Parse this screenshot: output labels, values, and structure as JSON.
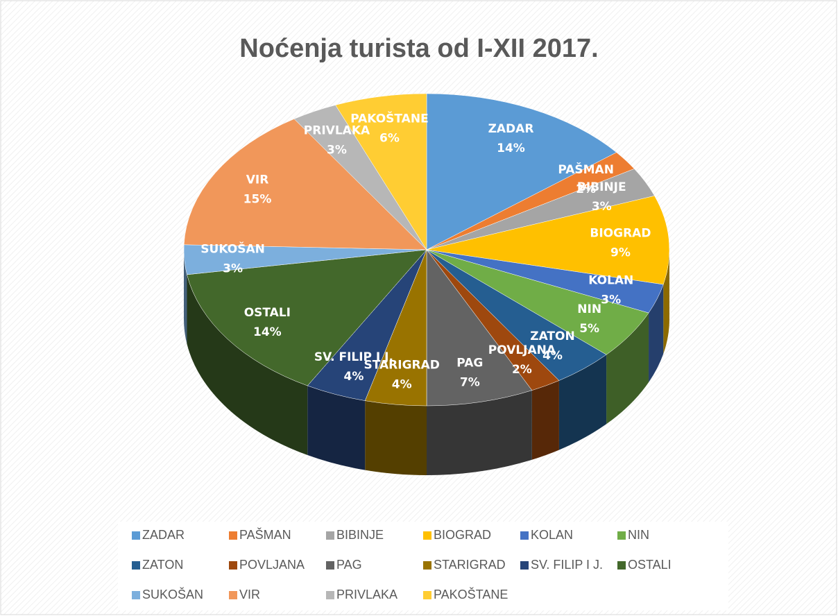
{
  "chart_data": {
    "type": "pie",
    "title": "Noćenja turista od I-XII 2017.",
    "categories": [
      "ZADAR",
      "PAŠMAN",
      "BIBINJE",
      "BIOGRAD",
      "KOLAN",
      "NIN",
      "ZATON",
      "POVLJANA",
      "PAG",
      "STARIGRAD",
      "SV. FILIP I J.",
      "OSTALI",
      "SUKOŠAN",
      "VIR",
      "PRIVLAKA",
      "PAKOŠTANE"
    ],
    "values": [
      14,
      2,
      3,
      9,
      3,
      5,
      4,
      2,
      7,
      4,
      4,
      14,
      3,
      15,
      3,
      6
    ],
    "value_labels": [
      "14%",
      "2%",
      "3%",
      "9%",
      "3%",
      "5%",
      "4%",
      "2%",
      "7%",
      "4%",
      "4%",
      "14%",
      "3%",
      "15%",
      "3%",
      "6%"
    ],
    "colors": [
      "#5b9bd5",
      "#ed7d31",
      "#a5a5a5",
      "#ffc000",
      "#4472c4",
      "#70ad47",
      "#255e91",
      "#9e480e",
      "#636363",
      "#997300",
      "#264478",
      "#43682b",
      "#7cafdd",
      "#f1975a",
      "#b7b7b7",
      "#ffcd33"
    ],
    "legend": "bottom"
  }
}
